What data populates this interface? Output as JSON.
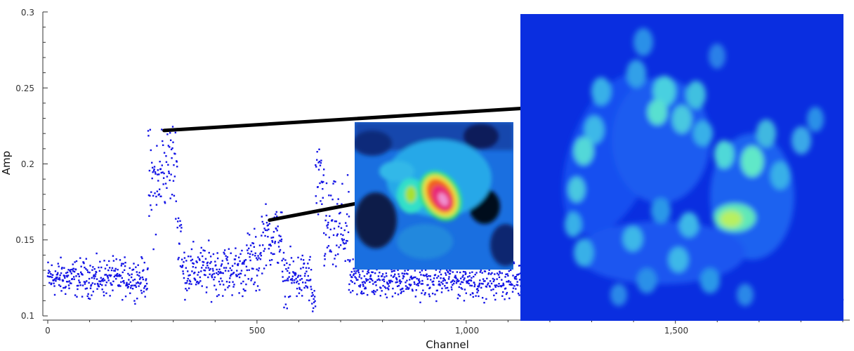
{
  "chart_data": {
    "type": "scatter",
    "xlabel": "Channel",
    "ylabel": "Amp",
    "xlim": [
      0,
      1900
    ],
    "ylim": [
      0.1,
      0.3
    ],
    "x_ticks": [
      0,
      500,
      1000,
      1500
    ],
    "x_tick_labels": [
      "0",
      "500",
      "1,000",
      "1,500"
    ],
    "y_ticks": [
      0.1,
      0.15,
      0.2,
      0.25,
      0.3
    ],
    "y_tick_labels": [
      "0.1",
      "0.15",
      "0.2",
      "0.25",
      "0.3"
    ],
    "grid": false,
    "series": [
      {
        "color": "#1414e6",
        "segments": [
          {
            "x_start": 0,
            "x_end": 240,
            "mean": 0.125,
            "spread": 0.006
          },
          {
            "x_start": 240,
            "x_end": 270,
            "mean": 0.185,
            "spread": 0.018
          },
          {
            "x_start": 270,
            "x_end": 310,
            "mean": 0.2,
            "spread": 0.014
          },
          {
            "x_start": 310,
            "x_end": 320,
            "mean": 0.155,
            "spread": 0.015
          },
          {
            "x_start": 320,
            "x_end": 470,
            "mean": 0.13,
            "spread": 0.008
          },
          {
            "x_start": 470,
            "x_end": 510,
            "mean": 0.135,
            "spread": 0.01
          },
          {
            "x_start": 510,
            "x_end": 560,
            "mean": 0.152,
            "spread": 0.01
          },
          {
            "x_start": 560,
            "x_end": 630,
            "mean": 0.125,
            "spread": 0.008
          },
          {
            "x_start": 630,
            "x_end": 640,
            "mean": 0.11,
            "spread": 0.005
          },
          {
            "x_start": 640,
            "x_end": 660,
            "mean": 0.185,
            "spread": 0.012
          },
          {
            "x_start": 660,
            "x_end": 720,
            "mean": 0.155,
            "spread": 0.015
          },
          {
            "x_start": 720,
            "x_end": 1900,
            "mean": 0.124,
            "spread": 0.006
          }
        ]
      }
    ],
    "insets": [
      {
        "name": "inset-small",
        "colormap": "rainbow",
        "linked_point": {
          "x": 530,
          "y": 0.163
        }
      },
      {
        "name": "inset-large",
        "colormap": "blue-cyan-green",
        "linked_point": {
          "x": 278,
          "y": 0.222
        }
      }
    ]
  }
}
